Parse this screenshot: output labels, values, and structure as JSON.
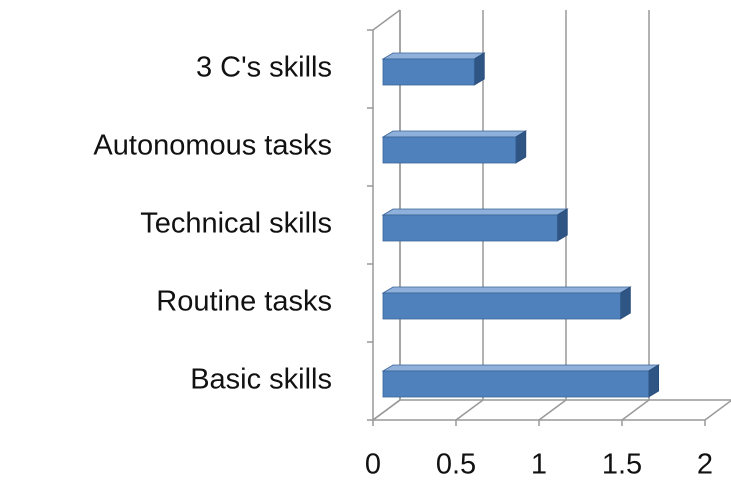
{
  "chart_data": {
    "type": "bar",
    "orientation": "horizontal",
    "categories": [
      "3 C's skills",
      "Autonomous tasks",
      "Technical skills",
      "Routine tasks",
      "Basic skills"
    ],
    "values": [
      0.55,
      0.8,
      1.05,
      1.43,
      1.6
    ],
    "color": "#4f81bd",
    "xlim": [
      0,
      2
    ],
    "xticks": [
      0,
      0.5,
      1,
      1.5,
      2
    ],
    "grid": true
  }
}
